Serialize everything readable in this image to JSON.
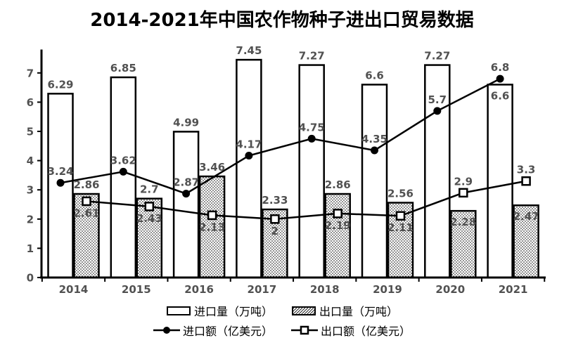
{
  "title": "2014-2021年中国农作物种子进出口贸易数据",
  "colors": {
    "axis": "#000000",
    "bar_stroke": "#000000",
    "line": "#000000",
    "label_gray": "#515151",
    "bar_fill": "#ffffff"
  },
  "legend": [
    {
      "name": "import-volume",
      "type": "bar-plain",
      "label": "进口量（万吨）"
    },
    {
      "name": "export-volume",
      "type": "bar-hatch",
      "label": "出口量（万吨）"
    },
    {
      "name": "import-value",
      "type": "line-circle",
      "label": "进口额（亿美元）"
    },
    {
      "name": "export-value",
      "type": "line-square",
      "label": "出口额（亿美元）"
    }
  ],
  "chart_data": {
    "type": "bar",
    "title": "2014-2021年中国农作物种子进出口贸易数据",
    "categories": [
      "2014",
      "2015",
      "2016",
      "2017",
      "2018",
      "2019",
      "2020",
      "2021"
    ],
    "series": [
      {
        "name": "进口量（万吨）",
        "kind": "bar",
        "style": "plain",
        "values": [
          6.29,
          6.85,
          4.99,
          7.45,
          7.27,
          6.6,
          7.27,
          6.6
        ],
        "label_inside": [
          false,
          false,
          false,
          false,
          false,
          false,
          false,
          true
        ]
      },
      {
        "name": "出口量（万吨）",
        "kind": "bar",
        "style": "dotted",
        "values": [
          2.86,
          2.7,
          3.46,
          2.33,
          2.86,
          2.56,
          2.28,
          2.47
        ],
        "label_inside": [
          false,
          false,
          false,
          false,
          false,
          false,
          true,
          true
        ]
      },
      {
        "name": "进口额（亿美元）",
        "kind": "line",
        "marker": "circle",
        "values": [
          3.24,
          3.62,
          2.87,
          4.17,
          4.75,
          4.35,
          5.7,
          6.8
        ],
        "label_pos": [
          "above",
          "above",
          "above",
          "above",
          "above",
          "above",
          "above",
          "above"
        ]
      },
      {
        "name": "出口额（亿美元）",
        "kind": "line",
        "marker": "square",
        "values": [
          2.61,
          2.43,
          2.13,
          2,
          2.19,
          2.11,
          2.9,
          3.3
        ],
        "label_pos": [
          "below",
          "below",
          "below",
          "below",
          "below",
          "below",
          "above",
          "above"
        ]
      }
    ],
    "xlabel": "",
    "ylabel": "",
    "yticks": [
      0,
      1,
      2,
      3,
      4,
      5,
      6,
      7
    ],
    "ylim": [
      0,
      7.8
    ],
    "grid": false,
    "legend_position": "bottom"
  }
}
